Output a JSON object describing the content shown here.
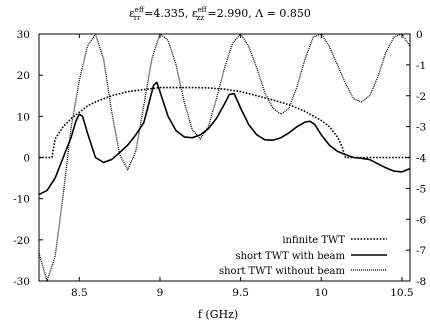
{
  "chart_data": {
    "type": "line",
    "title": "ε_rr^eff =4.335, ε_zz^eff =2.990, Λ = 0.850",
    "xlabel": "f (GHz)",
    "ylabel": "",
    "xlim": [
      8.25,
      10.55
    ],
    "ylim": [
      -30,
      30
    ],
    "y2lim": [
      -8,
      0
    ],
    "x_ticks": [
      8.5,
      9,
      9.5,
      10,
      10.5
    ],
    "x_tick_labels": [
      "8.5",
      "9",
      "9.5",
      "10",
      "10.5"
    ],
    "y_ticks": [
      -30,
      -20,
      -10,
      0,
      10,
      20,
      30
    ],
    "y_tick_labels": [
      "-30",
      "-20",
      "-10",
      "0",
      "10",
      "20",
      "30"
    ],
    "y2_ticks": [
      -8,
      -7,
      -6,
      -5,
      -4,
      -3,
      -2,
      -1,
      0
    ],
    "y2_tick_labels": [
      "-8",
      "-7",
      "-6",
      "-5",
      "-4",
      "-3",
      "-2",
      "-1",
      "0"
    ],
    "grid": false,
    "legend_position": "bottom-right",
    "series": [
      {
        "name": "infinite TWT",
        "axis": "left",
        "style": "dotted",
        "x": [
          8.25,
          8.3,
          8.33,
          8.35,
          8.4,
          8.45,
          8.5,
          8.55,
          8.6,
          8.7,
          8.8,
          8.9,
          9.0,
          9.1,
          9.2,
          9.3,
          9.4,
          9.5,
          9.6,
          9.7,
          9.8,
          9.9,
          10.0,
          10.05,
          10.1,
          10.13,
          10.15,
          10.2,
          10.3,
          10.4,
          10.5,
          10.55
        ],
        "y": [
          0,
          0,
          0,
          4.5,
          7.5,
          9.5,
          11,
          12.5,
          13.5,
          15,
          16,
          16.5,
          17,
          17,
          17,
          16.9,
          16.6,
          16,
          15,
          14,
          12.8,
          11.2,
          9,
          7.5,
          5,
          2.5,
          0,
          0,
          0,
          0,
          0,
          0
        ]
      },
      {
        "name": "short TWT with beam",
        "axis": "left",
        "style": "solid",
        "x": [
          8.25,
          8.3,
          8.35,
          8.4,
          8.45,
          8.48,
          8.5,
          8.52,
          8.55,
          8.6,
          8.65,
          8.7,
          8.75,
          8.8,
          8.85,
          8.9,
          8.93,
          8.96,
          8.98,
          9.0,
          9.05,
          9.1,
          9.15,
          9.2,
          9.25,
          9.3,
          9.35,
          9.4,
          9.43,
          9.46,
          9.5,
          9.55,
          9.6,
          9.65,
          9.7,
          9.75,
          9.8,
          9.85,
          9.9,
          9.93,
          9.96,
          10.0,
          10.05,
          10.1,
          10.15,
          10.2,
          10.25,
          10.3,
          10.35,
          10.4,
          10.45,
          10.5,
          10.55
        ],
        "y": [
          -9,
          -8,
          -5,
          0,
          5,
          9,
          10.5,
          10,
          6,
          0,
          -1.2,
          -0.5,
          1.2,
          3,
          5.5,
          8.5,
          13,
          17.5,
          18.3,
          16,
          10,
          6.5,
          5,
          4.8,
          5.5,
          7,
          9.5,
          13,
          15.3,
          15.5,
          12,
          8,
          5.5,
          4.3,
          4.2,
          4.8,
          6,
          7.5,
          8.6,
          8.8,
          8,
          5.5,
          3,
          1.5,
          0.7,
          0,
          -0.2,
          -0.5,
          -1.5,
          -2.5,
          -3.3,
          -3.5,
          -2.7
        ]
      },
      {
        "name": "short TWT without beam",
        "axis": "right",
        "style": "dense-dotted",
        "x": [
          8.25,
          8.3,
          8.35,
          8.4,
          8.45,
          8.5,
          8.55,
          8.6,
          8.65,
          8.7,
          8.75,
          8.8,
          8.85,
          8.9,
          8.95,
          9.0,
          9.05,
          9.1,
          9.15,
          9.2,
          9.25,
          9.3,
          9.35,
          9.4,
          9.45,
          9.5,
          9.55,
          9.6,
          9.65,
          9.7,
          9.75,
          9.8,
          9.85,
          9.9,
          9.95,
          10.0,
          10.05,
          10.1,
          10.15,
          10.2,
          10.25,
          10.3,
          10.35,
          10.4,
          10.45,
          10.5,
          10.55
        ],
        "y": [
          -7.1,
          -8,
          -7.2,
          -5.2,
          -3,
          -1.5,
          -0.4,
          0,
          -0.8,
          -2.5,
          -3.9,
          -4.4,
          -3.8,
          -2.3,
          -0.8,
          0,
          -0.2,
          -1,
          -2.2,
          -3.1,
          -3.4,
          -3,
          -2.1,
          -1.1,
          -0.3,
          0,
          -0.4,
          -1.1,
          -1.9,
          -2.4,
          -2.6,
          -2.4,
          -1.7,
          -0.8,
          -0.1,
          0,
          -0.4,
          -1,
          -1.6,
          -2.1,
          -2.2,
          -2,
          -1.4,
          -0.6,
          -0.1,
          0,
          -0.4
        ]
      }
    ]
  }
}
